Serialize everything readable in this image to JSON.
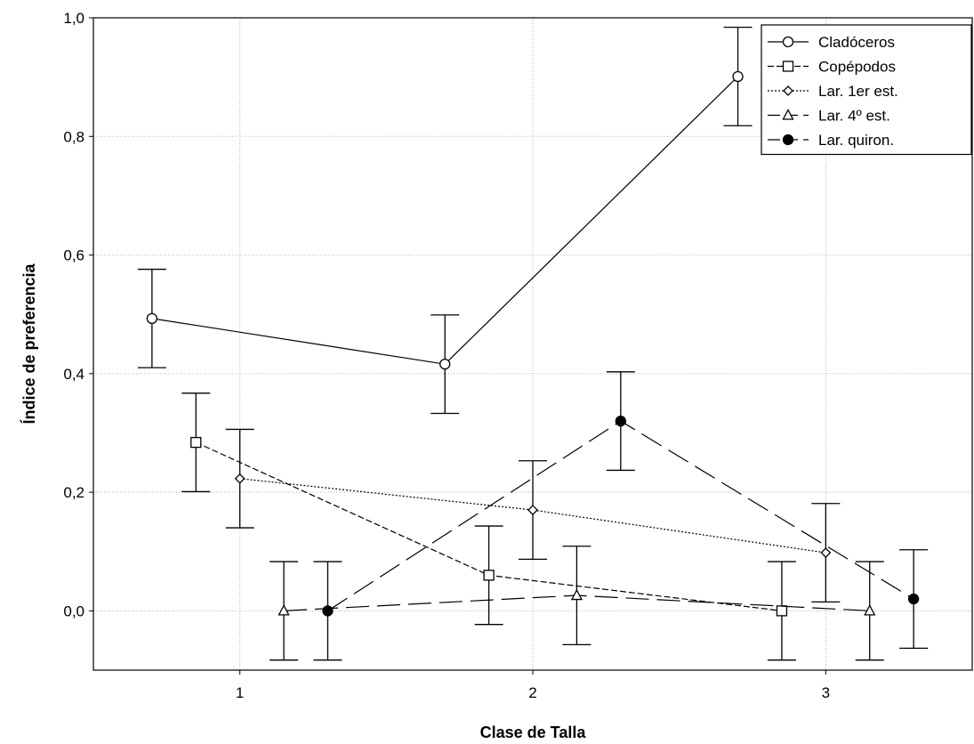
{
  "chart_data": {
    "type": "line",
    "title": "",
    "xlabel": "Clase de Talla",
    "ylabel": "Índice de preferencia",
    "xlim": [
      0.5,
      3.5
    ],
    "ylim": [
      -0.1,
      1.0
    ],
    "x_ticks": [
      1,
      2,
      3
    ],
    "x_tick_labels": [
      "1",
      "2",
      "3"
    ],
    "y_ticks": [
      0.0,
      0.2,
      0.4,
      0.6,
      0.8,
      1.0
    ],
    "y_tick_labels": [
      "0,0",
      "0,2",
      "0,4",
      "0,6",
      "0,8",
      "1,0"
    ],
    "grid": true,
    "legend_position": "top-right",
    "error_bars": true,
    "series": [
      {
        "name": "Cladóceros",
        "marker": "circle-open",
        "line_style": "solid",
        "x": [
          0.7,
          1.7,
          2.7
        ],
        "y": [
          0.493,
          0.416,
          0.901
        ],
        "err": [
          0.083,
          0.083,
          0.083
        ]
      },
      {
        "name": "Copépodos",
        "marker": "square-open",
        "line_style": "dashed",
        "x": [
          0.85,
          1.85,
          2.85
        ],
        "y": [
          0.284,
          0.06,
          0.0
        ],
        "err": [
          0.083,
          0.083,
          0.083
        ]
      },
      {
        "name": "Lar. 1er est.",
        "marker": "diamond-open",
        "line_style": "dotted",
        "x": [
          1.0,
          2.0,
          3.0
        ],
        "y": [
          0.223,
          0.17,
          0.098
        ],
        "err": [
          0.083,
          0.083,
          0.083
        ]
      },
      {
        "name": "Lar. 4º est.",
        "marker": "triangle-open",
        "line_style": "long-dash",
        "x": [
          1.15,
          2.15,
          3.15
        ],
        "y": [
          0.0,
          0.026,
          0.0
        ],
        "err": [
          0.083,
          0.083,
          0.083
        ]
      },
      {
        "name": "Lar. quiron.",
        "marker": "circle-filled",
        "line_style": "long-dash",
        "x": [
          1.3,
          2.3,
          3.3
        ],
        "y": [
          0.0,
          0.32,
          0.02
        ],
        "err": [
          0.083,
          0.083,
          0.083
        ]
      }
    ]
  }
}
